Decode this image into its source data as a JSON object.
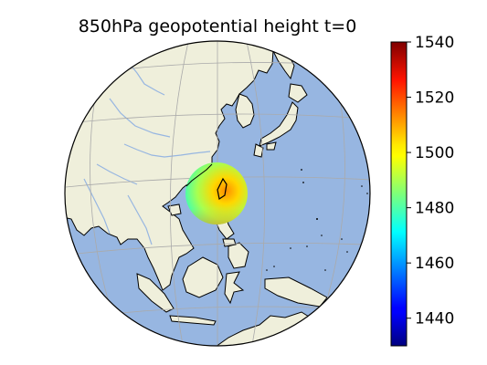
{
  "title": "850hPa geopotential height t=0",
  "colorbar": {
    "min": 1430,
    "max": 1540,
    "ticks": [
      1440,
      1460,
      1480,
      1500,
      1520,
      1540
    ],
    "colormap": "jet"
  },
  "colors": {
    "ocean": "#97b6e1",
    "land": "#efefdb",
    "rivers": "#97b6e1",
    "coast": "#000000",
    "gridlines": "#aaaaaa"
  },
  "chart_data": {
    "type": "heatmap",
    "title": "850hPa geopotential height t=0",
    "value_range": [
      1430,
      1540
    ],
    "region": "East Asia / Western Pacific (orthographic projection)"
  }
}
